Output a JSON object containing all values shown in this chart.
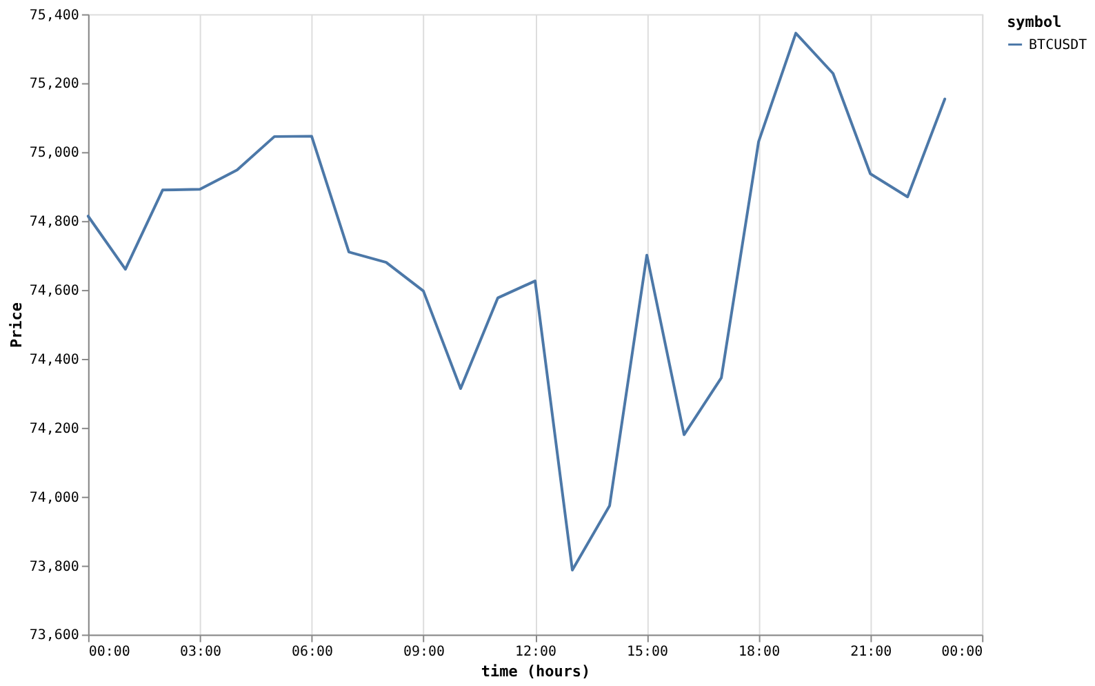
{
  "chart_data": {
    "type": "line",
    "xlabel": "time (hours)",
    "ylabel": "Price",
    "legend_title": "symbol",
    "x": [
      0,
      1,
      2,
      3,
      4,
      5,
      6,
      7,
      8,
      9,
      10,
      11,
      12,
      13,
      14,
      15,
      16,
      17,
      18,
      19,
      20,
      21,
      22,
      23
    ],
    "series": [
      {
        "name": "BTCUSDT",
        "color": "#4c78a8",
        "values": [
          74814,
          74660,
          74890,
          74892,
          74948,
          75045,
          75046,
          74710,
          74680,
          74597,
          74314,
          74577,
          74626,
          73787,
          73974,
          74701,
          74180,
          74345,
          75030,
          75345,
          75228,
          74937,
          74870,
          75154
        ]
      }
    ],
    "xlim": [
      0,
      24
    ],
    "xticks": [
      {
        "value": 0,
        "label": "00:00"
      },
      {
        "value": 3,
        "label": "03:00"
      },
      {
        "value": 6,
        "label": "06:00"
      },
      {
        "value": 9,
        "label": "09:00"
      },
      {
        "value": 12,
        "label": "12:00"
      },
      {
        "value": 15,
        "label": "15:00"
      },
      {
        "value": 18,
        "label": "18:00"
      },
      {
        "value": 21,
        "label": "21:00"
      },
      {
        "value": 24,
        "label": "00:00"
      }
    ],
    "ylim": [
      73600,
      75400
    ],
    "yticks": [
      {
        "value": 73600,
        "label": "73,600"
      },
      {
        "value": 73800,
        "label": "73,800"
      },
      {
        "value": 74000,
        "label": "74,000"
      },
      {
        "value": 74200,
        "label": "74,200"
      },
      {
        "value": 74400,
        "label": "74,400"
      },
      {
        "value": 74600,
        "label": "74,600"
      },
      {
        "value": 74800,
        "label": "74,800"
      },
      {
        "value": 75000,
        "label": "75,000"
      },
      {
        "value": 75200,
        "label": "75,200"
      },
      {
        "value": 75400,
        "label": "75,400"
      }
    ],
    "grid": "x",
    "legend": "right",
    "line_style": "solid"
  }
}
